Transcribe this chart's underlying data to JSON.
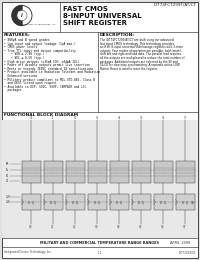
{
  "bg_color": "#ffffff",
  "border_color": "#555555",
  "logo_text": "Integrated Device Technology, Inc.",
  "chip_title_line1": "FAST CMOS",
  "chip_title_line2": "8-INPUT UNIVERSAL",
  "chip_title_line3": "SHIFT REGISTER",
  "part_number": "IDT74FCT299T/AT/CT",
  "features_title": "FEATURES:",
  "features": [
    "• 800μA and B speed grades",
    "• Low input and output leakage (1μA max.)",
    "• CMOS power levels",
    "• True TTL input and output compatibility",
    "    • VOH ≥ 2.8V (typ.)",
    "    • VOL ≤ 0.5V (typ.)",
    "• High drive outputs (±15mA IOH, ±64mA IOL)",
    "• Power off disable outputs permit live insertion",
    "• Meets or exceeds JEDEC standard 18 specifications",
    "• Product available in Radiation Tolerant and Radiation",
    "  Enhanced versions",
    "• Military product compliant to MIL-STD-883, Class B",
    "  and DESC listed upon request",
    "• Available in DIP, SOIC, SSOP, CERPACK and LCC",
    "  packages"
  ],
  "description_title": "DESCRIPTION:",
  "description_lines": [
    "The IDT74FCT299/AT/CT are built using our advanced",
    "fast input CMOS technology. This technology provides",
    "an 8 bit 8-input universal shift/storage registers with 3-state",
    "outputs. Four modes of operation are possible: hold (store),",
    "shift left and right and load data. The parallel load requires",
    "all the outputs are multiplexed to reduce the total number of",
    "packages. Additional outputs are selected by the S0 and",
    "S1/OE for slow easy synchronizing. A separate active LOW",
    "Master Reset is used to reset the register."
  ],
  "functional_title": "FUNCTIONAL BLOCK DIAGRAM",
  "footer_left": "MILITARY AND COMMERCIAL TEMPERATURE RANGE RANGES",
  "footer_right": "APRIL 1999",
  "footer_bottom_left": "Integrated Device Technology, Inc.",
  "footer_bottom_center": "1-1",
  "footer_bottom_right": "IDT72029/01",
  "page_bg": "#e0e0e0"
}
